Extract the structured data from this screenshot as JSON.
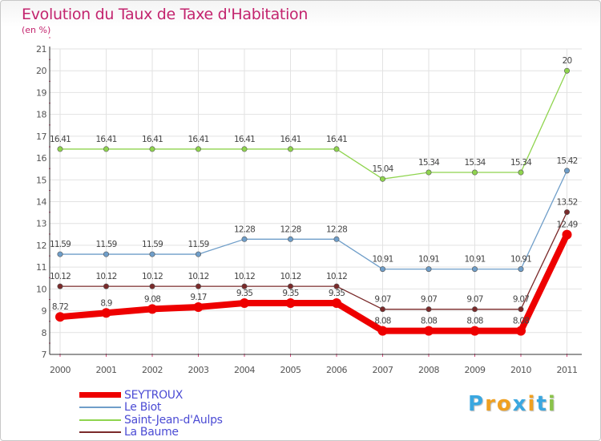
{
  "title": "Evolution du Taux de Taxe d'Habitation",
  "subtitle": "(en %)",
  "logo": {
    "letters": [
      "P",
      "r",
      "o",
      "x",
      "i",
      "t",
      "i"
    ],
    "colors": [
      "#3aa7e0",
      "#f0a020",
      "#f0a020",
      "#3aa7e0",
      "#f0a020",
      "#3aa7e0",
      "#8bc34a"
    ]
  },
  "chart_data": {
    "type": "line",
    "x": [
      "2000",
      "2001",
      "2002",
      "2003",
      "2004",
      "2005",
      "2006",
      "2007",
      "2008",
      "2009",
      "2010",
      "2011"
    ],
    "ylim": [
      7,
      21
    ],
    "yticks": [
      "7",
      "8",
      "9",
      "10",
      "11",
      "12",
      "13",
      "14",
      "15",
      "16",
      "17",
      "18",
      "19",
      "20",
      "21"
    ],
    "grid": true,
    "series": [
      {
        "name": "SEYTROUX",
        "color": "#ee0000",
        "values": [
          8.72,
          8.9,
          9.08,
          9.17,
          9.35,
          9.35,
          9.35,
          8.08,
          8.08,
          8.08,
          8.08,
          12.49
        ],
        "labels": [
          "8.72",
          "8.9",
          "9.08",
          "9.17",
          "9.35",
          "9.35",
          "9.35",
          "8.08",
          "8.08",
          "8.08",
          "8.08",
          "12.49"
        ]
      },
      {
        "name": "Le Biot",
        "color": "#6f9ec9",
        "values": [
          11.59,
          11.59,
          11.59,
          11.59,
          12.28,
          12.28,
          12.28,
          10.91,
          10.91,
          10.91,
          10.91,
          15.42
        ],
        "labels": [
          "11.59",
          "11.59",
          "11.59",
          "11.59",
          "12.28",
          "12.28",
          "12.28",
          "10.91",
          "10.91",
          "10.91",
          "10.91",
          "15.42"
        ]
      },
      {
        "name": "Saint-Jean-d'Aulps",
        "color": "#8fd44e",
        "values": [
          16.41,
          16.41,
          16.41,
          16.41,
          16.41,
          16.41,
          16.41,
          15.04,
          15.34,
          15.34,
          15.34,
          20
        ],
        "labels": [
          "16.41",
          "16.41",
          "16.41",
          "16.41",
          "16.41",
          "16.41",
          "16.41",
          "15.04",
          "15.34",
          "15.34",
          "15.34",
          "20"
        ]
      },
      {
        "name": "La Baume",
        "color": "#7a2a2a",
        "values": [
          10.12,
          10.12,
          10.12,
          10.12,
          10.12,
          10.12,
          10.12,
          9.07,
          9.07,
          9.07,
          9.07,
          13.52
        ],
        "labels": [
          "10.12",
          "10.12",
          "10.12",
          "10.12",
          "10.12",
          "10.12",
          "10.12",
          "9.07",
          "9.07",
          "9.07",
          "9.07",
          "13.52"
        ]
      }
    ]
  }
}
